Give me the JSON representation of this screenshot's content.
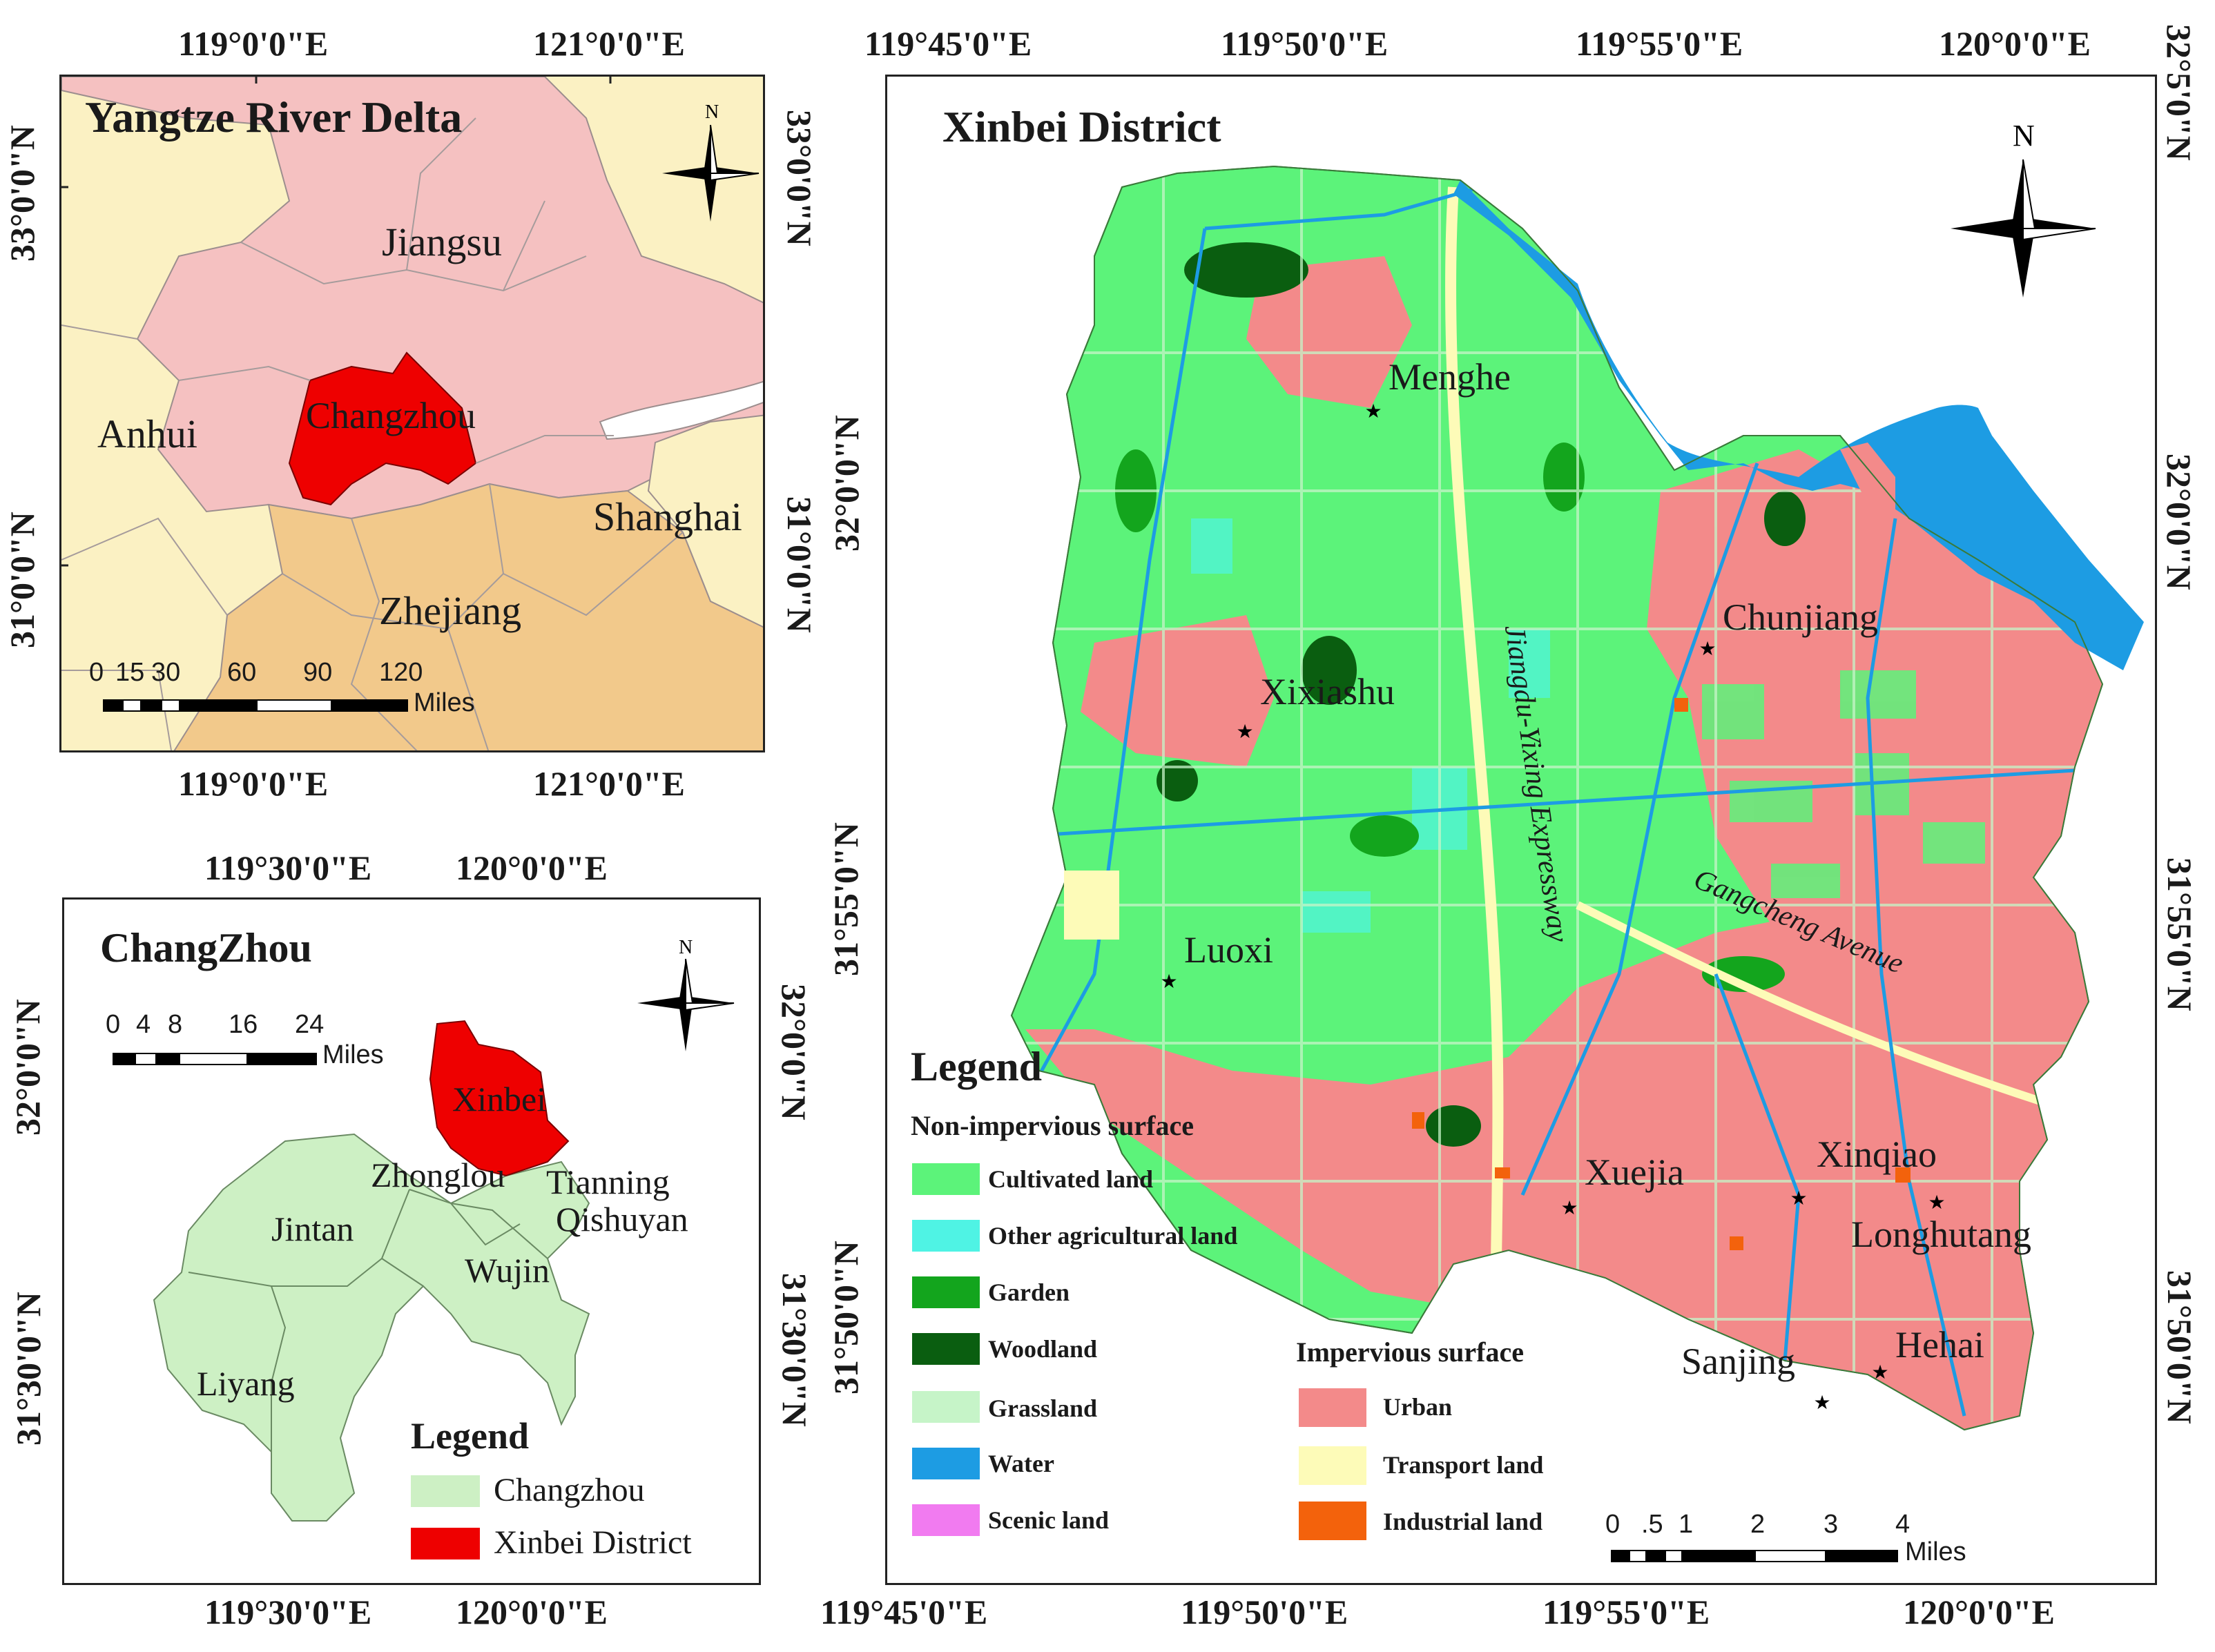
{
  "colors": {
    "province_pink": "#f5c1c1",
    "other_yellow": "#fbf1c3",
    "zhejiang": "#f2c98b",
    "changzhou_red": "#ee0000",
    "cz_green": "#cdf0c4",
    "cultivated": "#5cf37a",
    "other_agri": "#4ff3e4",
    "garden": "#13a51d",
    "woodland": "#0a5e10",
    "grassland": "#c6f4c8",
    "water": "#1d9ce3",
    "scenic": "#f17bf0",
    "urban": "#f38a8a",
    "transport": "#fdfbb8",
    "industrial": "#f3620c"
  },
  "panel1": {
    "title": "Yangtze River Delta",
    "top_ticks": [
      "119°0'0\"E",
      "121°0'0\"E"
    ],
    "bottom_ticks": [
      "119°0'0\"E",
      "121°0'0\"E"
    ],
    "left_ticks": [
      "33°0'0\"N",
      "31°0'0\"N"
    ],
    "right_ticks": [
      "33°0'0\"N",
      "31°0'0\"N"
    ],
    "labels": {
      "jiangsu": "Jiangsu",
      "anhui": "Anhui",
      "changzhou": "Changzhou",
      "shanghai": "Shanghai",
      "zhejiang": "Zhejiang"
    },
    "north": "N",
    "scale": {
      "nums": [
        "0",
        "15",
        "30",
        "60",
        "90",
        "120"
      ],
      "unit": "Miles"
    }
  },
  "panel2": {
    "title": "ChangZhou",
    "top_ticks": [
      "119°30'0\"E",
      "120°0'0\"E"
    ],
    "bottom_ticks": [
      "119°30'0\"E",
      "120°0'0\"E"
    ],
    "left_ticks": [
      "32°0'0\"N",
      "31°30'0\"N"
    ],
    "right_ticks": [
      "32°0'0\"N",
      "31°30'0\"N"
    ],
    "labels": {
      "xinbei": "Xinbei",
      "zhonglou": "Zhonglou",
      "tianning": "Tianning",
      "qishuyan": "Qishuyan",
      "jintan": "Jintan",
      "wujin": "Wujin",
      "liyang": "Liyang"
    },
    "north": "N",
    "scale": {
      "nums": [
        "0",
        "4",
        "8",
        "16",
        "24"
      ],
      "unit": "Miles"
    },
    "legend": {
      "title": "Legend",
      "items": [
        "Changzhou",
        "Xinbei District"
      ]
    }
  },
  "panel3": {
    "title": "Xinbei District",
    "top_ticks": [
      "119°45'0\"E",
      "119°50'0\"E",
      "119°55'0\"E",
      "120°0'0\"E"
    ],
    "bottom_ticks": [
      "119°45'0\"E",
      "119°50'0\"E",
      "119°55'0\"E",
      "120°0'0\"E"
    ],
    "left_ticks": [
      "32°0'0\"N",
      "31°55'0\"N",
      "31°50'0\"N"
    ],
    "right_ticks": [
      "32°5'0\"N",
      "32°0'0\"N",
      "31°55'0\"N",
      "31°50'0\"N"
    ],
    "towns": {
      "menghe": "Menghe",
      "chunjiang": "Chunjiang",
      "xixiashu": "Xixiashu",
      "luoxi": "Luoxi",
      "xuejia": "Xuejia",
      "xinqiao": "Xinqiao",
      "longhutang": "Longhutang",
      "sanjing": "Sanjing",
      "hehai": "Hehai"
    },
    "roads": {
      "expressway": "Jiangdu-Yixing Expressway",
      "avenue": "Gangcheng Avenue"
    },
    "north": "N",
    "legend": {
      "title": "Legend",
      "nonimp_title": "Non-impervious surface",
      "nonimp": [
        "Cultivated land",
        "Other agricultural land",
        "Garden",
        "Woodland",
        "Grassland",
        "Water",
        "Scenic land"
      ],
      "imp_title": "Impervious surface",
      "imp": [
        "Urban",
        "Transport land",
        "Industrial land"
      ]
    },
    "scale": {
      "nums": [
        "0",
        ".5",
        "1",
        "2",
        "3",
        "4"
      ],
      "unit": "Miles"
    }
  }
}
